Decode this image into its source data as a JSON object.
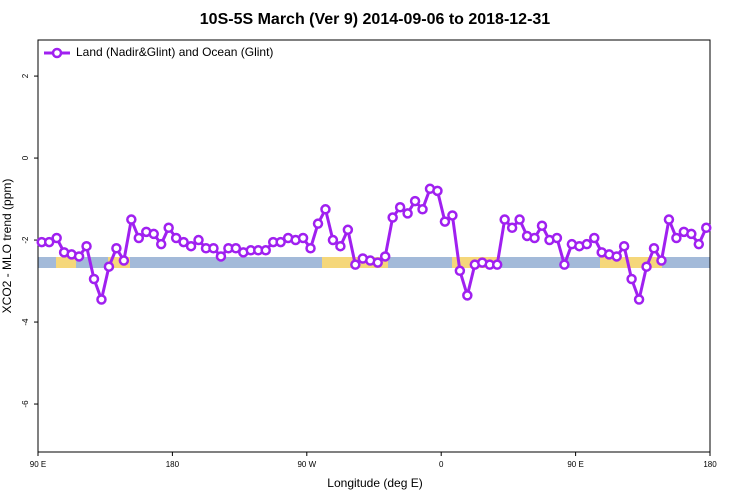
{
  "chart_data": {
    "type": "line",
    "title": "10S-5S March (Ver 9)   2014-09-06 to 2018-12-31",
    "x_label": "Longitude (deg E)",
    "y_label": "XCO2 - MLO trend (ppm)",
    "xlim": [
      90,
      540
    ],
    "xticks": [
      {
        "value": 90,
        "label": "90 E"
      },
      180,
      {
        "value": 270,
        "label": "90 W"
      },
      {
        "value": 360,
        "label": "0"
      },
      {
        "value": 450,
        "label": "90 E"
      },
      {
        "value": 540,
        "label": "180"
      }
    ],
    "ylim": [
      -7.17,
      2.88
    ],
    "yticks": [
      2,
      0,
      -2,
      -4,
      -6
    ],
    "grid": false,
    "legend": "top-left",
    "x": [
      92.5,
      97.5,
      102.5,
      107.5,
      112.5,
      117.5,
      122.5,
      127.5,
      132.5,
      137.5,
      142.5,
      147.5,
      152.5,
      157.5,
      162.5,
      167.5,
      172.5,
      177.5,
      182.5,
      187.5,
      192.5,
      197.5,
      202.5,
      207.5,
      212.5,
      217.5,
      222.5,
      227.5,
      232.5,
      237.5,
      242.5,
      247.5,
      252.5,
      257.5,
      262.5,
      267.5,
      272.5,
      277.5,
      282.5,
      287.5,
      292.5,
      297.5,
      302.5,
      307.5,
      312.5,
      317.5,
      322.5,
      327.5,
      332.5,
      337.5,
      342.5,
      347.5,
      352.5,
      357.5,
      362.5,
      367.5,
      372.5,
      377.5,
      382.5,
      387.5,
      392.5,
      397.5,
      402.5,
      407.5,
      412.5,
      417.5,
      422.5,
      427.5,
      432.5,
      437.5,
      442.5,
      447.5,
      452.5,
      457.5,
      462.5,
      467.5,
      472.5,
      477.5,
      482.5,
      487.5,
      492.5,
      497.5,
      502.5,
      507.5,
      512.5,
      517.5,
      522.5,
      527.5,
      532.5,
      537.5
    ],
    "series": [
      {
        "name": "Land (Nadir&Glint) and Ocean (Glint)",
        "color": "#a020f0",
        "values": [
          -2.05,
          -2.05,
          -1.95,
          -2.3,
          -2.35,
          -2.4,
          -2.15,
          -2.95,
          -3.45,
          -2.65,
          -2.2,
          -2.5,
          -1.5,
          -1.95,
          -1.8,
          -1.85,
          -2.1,
          -1.7,
          -1.95,
          -2.05,
          -2.15,
          -2.0,
          -2.2,
          -2.2,
          -2.4,
          -2.2,
          -2.2,
          -2.3,
          -2.25,
          -2.25,
          -2.25,
          -2.05,
          -2.05,
          -1.95,
          -2.0,
          -1.95,
          -2.2,
          -1.6,
          -1.25,
          -2.0,
          -2.15,
          -1.75,
          -2.6,
          -2.45,
          -2.5,
          -2.55,
          -2.4,
          -1.45,
          -1.2,
          -1.35,
          -1.05,
          -1.25,
          -0.75,
          -0.8,
          -1.55,
          -1.4,
          -2.75,
          -3.35,
          -2.6,
          -2.55,
          -2.6,
          -2.6,
          -1.5,
          -1.7,
          -1.5,
          -1.9,
          -1.95,
          -1.65,
          -2.0,
          -1.95,
          -2.6,
          -2.1,
          -2.15,
          -2.1,
          -1.95,
          -2.3,
          -2.35,
          -2.4,
          -2.15,
          -2.95,
          -3.45,
          -2.65,
          -2.2,
          -2.5,
          -1.5,
          -1.95,
          -1.8,
          -1.85,
          -2.1,
          -1.7
        ]
      }
    ]
  }
}
